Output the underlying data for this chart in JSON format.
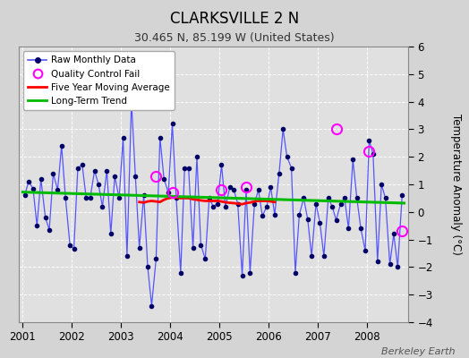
{
  "title": "CLARKSVILLE 2 N",
  "subtitle": "30.465 N, 85.199 W (United States)",
  "ylabel": "Temperature Anomaly (°C)",
  "credit": "Berkeley Earth",
  "ylim": [
    -4,
    6
  ],
  "yticks": [
    -4,
    -3,
    -2,
    -1,
    0,
    1,
    2,
    3,
    4,
    5,
    6
  ],
  "xlim": [
    2000.92,
    2008.83
  ],
  "bg_color": "#d4d4d4",
  "plot_bg_color": "#e0e0e0",
  "grid_color": "#ffffff",
  "raw_line_color": "#5555ff",
  "raw_dot_color": "#000066",
  "ma_color": "#ff0000",
  "trend_color": "#00bb00",
  "qc_color": "#ff00ff",
  "raw_data": [
    [
      2001.04,
      0.6
    ],
    [
      2001.12,
      1.1
    ],
    [
      2001.21,
      0.85
    ],
    [
      2001.29,
      -0.5
    ],
    [
      2001.37,
      1.2
    ],
    [
      2001.46,
      -0.2
    ],
    [
      2001.54,
      -0.65
    ],
    [
      2001.62,
      1.4
    ],
    [
      2001.71,
      0.8
    ],
    [
      2001.79,
      2.4
    ],
    [
      2001.87,
      0.5
    ],
    [
      2001.96,
      -1.2
    ],
    [
      2002.04,
      -1.35
    ],
    [
      2002.12,
      1.6
    ],
    [
      2002.21,
      1.7
    ],
    [
      2002.29,
      0.5
    ],
    [
      2002.37,
      0.5
    ],
    [
      2002.46,
      1.5
    ],
    [
      2002.54,
      1.0
    ],
    [
      2002.62,
      0.2
    ],
    [
      2002.71,
      1.5
    ],
    [
      2002.79,
      -0.8
    ],
    [
      2002.87,
      1.3
    ],
    [
      2002.96,
      0.5
    ],
    [
      2003.04,
      2.7
    ],
    [
      2003.12,
      -1.6
    ],
    [
      2003.21,
      4.0
    ],
    [
      2003.29,
      1.3
    ],
    [
      2003.37,
      -1.3
    ],
    [
      2003.46,
      0.6
    ],
    [
      2003.54,
      -2.0
    ],
    [
      2003.62,
      -3.4
    ],
    [
      2003.71,
      -1.7
    ],
    [
      2003.79,
      2.7
    ],
    [
      2003.87,
      1.2
    ],
    [
      2003.96,
      0.7
    ],
    [
      2004.04,
      3.2
    ],
    [
      2004.12,
      0.5
    ],
    [
      2004.21,
      -2.2
    ],
    [
      2004.29,
      1.6
    ],
    [
      2004.37,
      1.6
    ],
    [
      2004.46,
      -1.3
    ],
    [
      2004.54,
      2.0
    ],
    [
      2004.62,
      -1.2
    ],
    [
      2004.71,
      -1.7
    ],
    [
      2004.79,
      0.5
    ],
    [
      2004.87,
      0.2
    ],
    [
      2004.96,
      0.3
    ],
    [
      2005.04,
      1.7
    ],
    [
      2005.12,
      0.2
    ],
    [
      2005.21,
      0.9
    ],
    [
      2005.29,
      0.8
    ],
    [
      2005.37,
      0.3
    ],
    [
      2005.46,
      -2.3
    ],
    [
      2005.54,
      0.8
    ],
    [
      2005.62,
      -2.2
    ],
    [
      2005.71,
      0.3
    ],
    [
      2005.79,
      0.8
    ],
    [
      2005.87,
      -0.15
    ],
    [
      2005.96,
      0.2
    ],
    [
      2006.04,
      0.9
    ],
    [
      2006.12,
      -0.1
    ],
    [
      2006.21,
      1.4
    ],
    [
      2006.29,
      3.0
    ],
    [
      2006.37,
      2.0
    ],
    [
      2006.46,
      1.6
    ],
    [
      2006.54,
      -2.2
    ],
    [
      2006.62,
      -0.1
    ],
    [
      2006.71,
      0.5
    ],
    [
      2006.79,
      -0.25
    ],
    [
      2006.87,
      -1.6
    ],
    [
      2006.96,
      0.3
    ],
    [
      2007.04,
      -0.4
    ],
    [
      2007.12,
      -1.6
    ],
    [
      2007.21,
      0.5
    ],
    [
      2007.29,
      0.2
    ],
    [
      2007.37,
      -0.3
    ],
    [
      2007.46,
      0.3
    ],
    [
      2007.54,
      0.5
    ],
    [
      2007.62,
      -0.6
    ],
    [
      2007.71,
      1.9
    ],
    [
      2007.79,
      0.5
    ],
    [
      2007.87,
      -0.6
    ],
    [
      2007.96,
      -1.4
    ],
    [
      2008.04,
      2.6
    ],
    [
      2008.12,
      2.1
    ],
    [
      2008.21,
      -1.8
    ],
    [
      2008.29,
      1.0
    ],
    [
      2008.37,
      0.5
    ],
    [
      2008.46,
      -1.9
    ],
    [
      2008.54,
      -0.8
    ],
    [
      2008.62,
      -2.0
    ],
    [
      2008.71,
      0.6
    ]
  ],
  "qc_fails": [
    [
      2003.71,
      1.3
    ],
    [
      2004.04,
      0.7
    ],
    [
      2005.04,
      0.8
    ],
    [
      2005.54,
      0.9
    ],
    [
      2007.37,
      3.0
    ],
    [
      2008.04,
      2.2
    ],
    [
      2008.71,
      -0.7
    ]
  ],
  "moving_avg": [
    [
      2003.37,
      0.36
    ],
    [
      2003.46,
      0.34
    ],
    [
      2003.54,
      0.38
    ],
    [
      2003.62,
      0.4
    ],
    [
      2003.71,
      0.38
    ],
    [
      2003.79,
      0.36
    ],
    [
      2003.87,
      0.44
    ],
    [
      2003.96,
      0.5
    ],
    [
      2004.04,
      0.52
    ],
    [
      2004.12,
      0.52
    ],
    [
      2004.21,
      0.5
    ],
    [
      2004.29,
      0.5
    ],
    [
      2004.37,
      0.5
    ],
    [
      2004.46,
      0.46
    ],
    [
      2004.54,
      0.44
    ],
    [
      2004.62,
      0.42
    ],
    [
      2004.71,
      0.4
    ],
    [
      2004.79,
      0.4
    ],
    [
      2004.87,
      0.4
    ],
    [
      2004.96,
      0.4
    ],
    [
      2005.04,
      0.38
    ],
    [
      2005.12,
      0.35
    ],
    [
      2005.21,
      0.33
    ],
    [
      2005.29,
      0.32
    ],
    [
      2005.37,
      0.3
    ],
    [
      2005.46,
      0.28
    ],
    [
      2005.54,
      0.32
    ],
    [
      2005.62,
      0.34
    ],
    [
      2005.71,
      0.38
    ],
    [
      2005.79,
      0.4
    ],
    [
      2005.87,
      0.4
    ],
    [
      2005.96,
      0.4
    ],
    [
      2006.04,
      0.38
    ],
    [
      2006.12,
      0.36
    ]
  ],
  "trend_x": [
    2001.0,
    2008.75
  ],
  "trend_y": [
    0.72,
    0.32
  ]
}
